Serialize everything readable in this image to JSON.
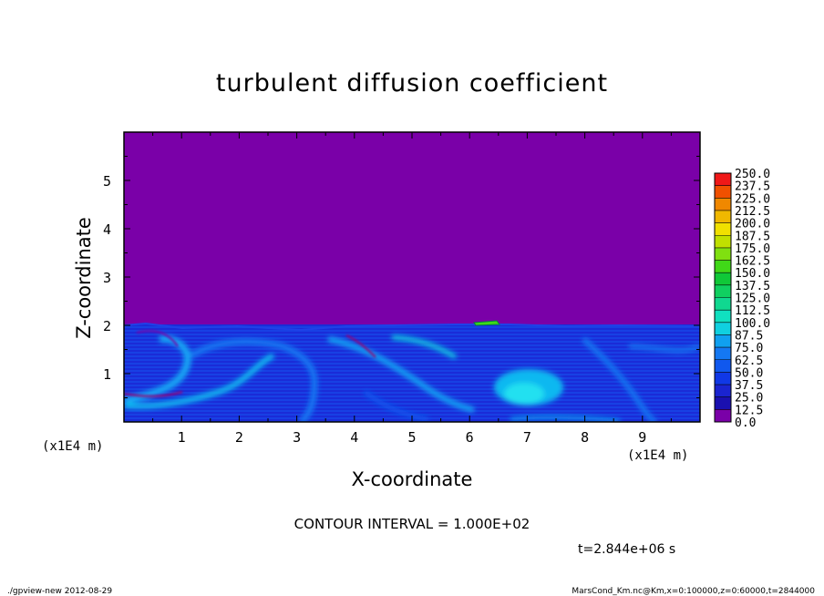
{
  "chart_data": {
    "type": "heatmap",
    "title": "turbulent diffusion coefficient",
    "xlabel": "X-coordinate",
    "ylabel": "Z-coordinate",
    "x_unit": "(x1E4 m)",
    "xlim": [
      0,
      10
    ],
    "ylim": [
      0,
      6
    ],
    "x_ticks": [
      "1",
      "2",
      "3",
      "4",
      "5",
      "6",
      "7",
      "8",
      "9"
    ],
    "y_ticks": [
      "1",
      "2",
      "3",
      "4",
      "5"
    ],
    "boundary_layer_top": 2.0,
    "background_value": 0.0,
    "field_description_values": {
      "typical_min": 12.5,
      "typical_max": 87.5,
      "local_max": 137.5
    },
    "colorbar": {
      "levels": [
        "0.0",
        "12.5",
        "25.0",
        "37.5",
        "50.0",
        "62.5",
        "75.0",
        "87.5",
        "100.0",
        "112.5",
        "125.0",
        "137.5",
        "150.0",
        "162.5",
        "175.0",
        "187.5",
        "200.0",
        "212.5",
        "225.0",
        "237.5",
        "250.0"
      ],
      "colors": [
        "#7a00a8",
        "#1a10b0",
        "#1a24d0",
        "#1038e6",
        "#1058ee",
        "#1478f2",
        "#10a0f0",
        "#10d0e0",
        "#10e0c0",
        "#10d890",
        "#10d060",
        "#10c838",
        "#40d818",
        "#80e010",
        "#c0e000",
        "#f0e000",
        "#f0b800",
        "#f08800",
        "#f05000",
        "#f01818",
        "#f08080"
      ]
    },
    "contour_interval": "CONTOUR INTERVAL = 1.000E+02",
    "time_label": "t=2.844e+06 s"
  },
  "footer": {
    "left": "./gpview-new   2012-08-29",
    "right": "MarsCond_Km.nc@Km,x=0:100000,z=0:60000,t=2844000"
  }
}
